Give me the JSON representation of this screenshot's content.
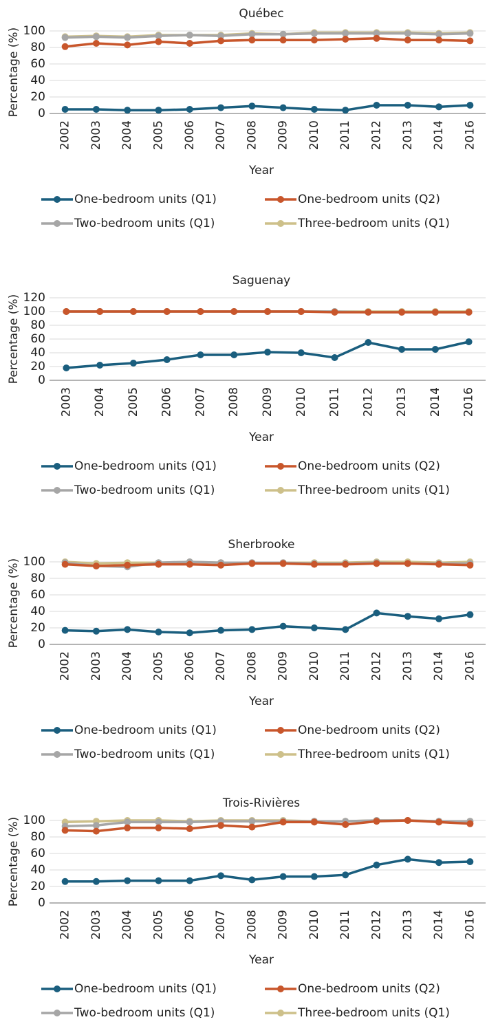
{
  "chart_data": [
    {
      "type": "line",
      "title": "Québec",
      "xlabel": "Year",
      "ylabel": "Percentage (%)",
      "categories": [
        "2002",
        "2003",
        "2004",
        "2005",
        "2006",
        "2007",
        "2008",
        "2009",
        "2010",
        "2011",
        "2012",
        "2013",
        "2014",
        "2016"
      ],
      "ylim": [
        0,
        100
      ],
      "yticks": [
        0,
        20,
        40,
        60,
        80,
        100
      ],
      "grid": true,
      "series": [
        {
          "name": "One-bedroom units (Q1)",
          "color": "#1a5e7e",
          "values": [
            5,
            5,
            4,
            4,
            5,
            7,
            9,
            7,
            5,
            4,
            10,
            10,
            8,
            10
          ]
        },
        {
          "name": "One-bedroom units (Q2)",
          "color": "#c8562b",
          "values": [
            81,
            85,
            83,
            87,
            85,
            88,
            89,
            89,
            89,
            90,
            91,
            89,
            89,
            88
          ]
        },
        {
          "name": "Two-bedroom units (Q1)",
          "color": "#a6a6a6",
          "values": [
            92,
            93,
            92,
            94,
            95,
            94,
            96,
            96,
            97,
            97,
            97,
            97,
            96,
            97
          ]
        },
        {
          "name": "Three-bedroom units (Q1)",
          "color": "#cdc08a",
          "values": [
            93,
            94,
            93,
            95,
            95,
            95,
            97,
            96,
            98,
            98,
            98,
            98,
            97,
            98
          ]
        }
      ]
    },
    {
      "type": "line",
      "title": "Saguenay",
      "xlabel": "Year",
      "ylabel": "Percentage (%)",
      "categories": [
        "2003",
        "2004",
        "2005",
        "2006",
        "2007",
        "2008",
        "2009",
        "2010",
        "2011",
        "2012",
        "2013",
        "2014",
        "2016"
      ],
      "ylim": [
        0,
        120
      ],
      "yticks": [
        0,
        20,
        40,
        60,
        80,
        100,
        120
      ],
      "grid": true,
      "series": [
        {
          "name": "One-bedroom units (Q1)",
          "color": "#1a5e7e",
          "values": [
            18,
            22,
            25,
            30,
            37,
            37,
            41,
            40,
            33,
            55,
            45,
            45,
            56
          ]
        },
        {
          "name": "One-bedroom units (Q2)",
          "color": "#c8562b",
          "values": [
            100,
            100,
            100,
            100,
            100,
            100,
            100,
            100,
            99,
            99,
            99,
            99,
            99
          ]
        },
        {
          "name": "Two-bedroom units (Q1)",
          "color": "#a6a6a6",
          "values": [
            100,
            100,
            100,
            100,
            100,
            100,
            100,
            100,
            100,
            99,
            99,
            99,
            99
          ]
        },
        {
          "name": "Three-bedroom units (Q1)",
          "color": "#cdc08a",
          "values": [
            100,
            100,
            100,
            100,
            100,
            100,
            100,
            100,
            100,
            100,
            100,
            100,
            100
          ]
        }
      ]
    },
    {
      "type": "line",
      "title": "Sherbrooke",
      "xlabel": "Year",
      "ylabel": "Percentage (%)",
      "categories": [
        "2002",
        "2003",
        "2004",
        "2005",
        "2006",
        "2007",
        "2008",
        "2009",
        "2010",
        "2011",
        "2012",
        "2013",
        "2014",
        "2016"
      ],
      "ylim": [
        0,
        100
      ],
      "yticks": [
        0,
        20,
        40,
        60,
        80,
        100
      ],
      "grid": true,
      "series": [
        {
          "name": "One-bedroom units (Q1)",
          "color": "#1a5e7e",
          "values": [
            17,
            16,
            18,
            15,
            14,
            17,
            18,
            22,
            20,
            18,
            38,
            34,
            31,
            36
          ]
        },
        {
          "name": "One-bedroom units (Q2)",
          "color": "#c8562b",
          "values": [
            97,
            95,
            96,
            97,
            97,
            96,
            98,
            98,
            97,
            97,
            98,
            98,
            97,
            96
          ]
        },
        {
          "name": "Two-bedroom units (Q1)",
          "color": "#a6a6a6",
          "values": [
            99,
            95,
            94,
            99,
            100,
            99,
            99,
            99,
            98,
            98,
            99,
            98,
            98,
            98
          ]
        },
        {
          "name": "Three-bedroom units (Q1)",
          "color": "#cdc08a",
          "values": [
            100,
            98,
            99,
            99,
            100,
            99,
            99,
            99,
            99,
            99,
            100,
            100,
            99,
            100
          ]
        }
      ]
    },
    {
      "type": "line",
      "title": "Trois-Rivières",
      "xlabel": "Year",
      "ylabel": "Percentage (%)",
      "categories": [
        "2002",
        "2003",
        "2004",
        "2005",
        "2006",
        "2007",
        "2008",
        "2009",
        "2010",
        "2011",
        "2012",
        "2013",
        "2014",
        "2016"
      ],
      "ylim": [
        0,
        100
      ],
      "yticks": [
        0,
        20,
        40,
        60,
        80,
        100
      ],
      "grid": true,
      "series": [
        {
          "name": "One-bedroom units (Q1)",
          "color": "#1a5e7e",
          "values": [
            26,
            26,
            27,
            27,
            27,
            33,
            28,
            32,
            32,
            34,
            46,
            53,
            49,
            50
          ]
        },
        {
          "name": "One-bedroom units (Q2)",
          "color": "#c8562b",
          "values": [
            88,
            87,
            91,
            91,
            90,
            94,
            92,
            98,
            98,
            95,
            99,
            100,
            98,
            96
          ]
        },
        {
          "name": "Two-bedroom units (Q1)",
          "color": "#a6a6a6",
          "values": [
            93,
            94,
            98,
            98,
            98,
            99,
            99,
            99,
            99,
            99,
            100,
            100,
            99,
            99
          ]
        },
        {
          "name": "Three-bedroom units (Q1)",
          "color": "#cdc08a",
          "values": [
            98,
            99,
            100,
            100,
            99,
            100,
            100,
            100,
            99,
            99,
            100,
            100,
            99,
            99
          ]
        }
      ]
    }
  ]
}
